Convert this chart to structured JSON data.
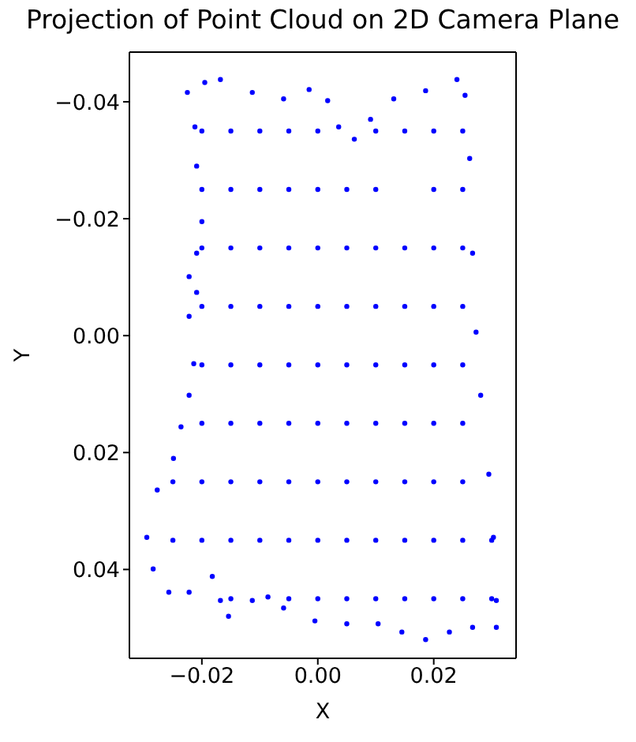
{
  "chart_data": {
    "type": "scatter",
    "title": "Projection of Point Cloud on 2D Camera Plane",
    "xlabel": "X",
    "ylabel": "Y",
    "x": [
      -0.0225,
      -0.0195,
      -0.0168,
      -0.0113,
      -0.0059,
      -0.0015,
      0.0017,
      0.0036,
      0.0063,
      0.0091,
      0.0131,
      0.0186,
      0.024,
      0.0254,
      0.0262,
      0.0267,
      0.0273,
      0.0281,
      0.0295,
      0.0303,
      0.0308,
      0.0308,
      0.0267,
      0.0227,
      0.0186,
      0.0145,
      0.0104,
      0.005,
      -0.0005,
      -0.0059,
      -0.0086,
      -0.0113,
      -0.0154,
      -0.0168,
      -0.0182,
      -0.0222,
      -0.0257,
      -0.0284,
      -0.0295,
      -0.0277,
      -0.0249,
      -0.0236,
      -0.0222,
      -0.0214,
      -0.0222,
      -0.0209,
      -0.0222,
      -0.0209,
      -0.02,
      -0.0209,
      -0.0212,
      -0.02,
      -0.015,
      -0.01,
      -0.005,
      0,
      0.01,
      0.015,
      0.02,
      0.025,
      -0.02,
      -0.015,
      -0.01,
      -0.005,
      0,
      0.005,
      0.01,
      0.02,
      0.025,
      -0.02,
      -0.015,
      -0.01,
      -0.005,
      0,
      0.005,
      0.01,
      0.015,
      0.02,
      0.025,
      -0.02,
      -0.015,
      -0.01,
      -0.005,
      0,
      0.005,
      0.01,
      0.015,
      0.02,
      0.025,
      -0.02,
      -0.015,
      -0.01,
      -0.005,
      0,
      0.005,
      0.01,
      0.015,
      0.02,
      0.025,
      -0.02,
      -0.015,
      -0.01,
      -0.005,
      0,
      0.005,
      0.01,
      0.015,
      0.02,
      0.025,
      -0.025,
      -0.02,
      -0.015,
      -0.01,
      -0.005,
      0,
      0.005,
      0.01,
      0.015,
      0.02,
      0.025,
      -0.025,
      -0.02,
      -0.015,
      -0.01,
      -0.005,
      0,
      0.005,
      0.01,
      0.015,
      0.02,
      0.025,
      0.03,
      -0.015,
      -0.005,
      0,
      0.005,
      0.01,
      0.015,
      0.02,
      0.025,
      0.03
    ],
    "values": [
      -0.0416,
      -0.0433,
      -0.0438,
      -0.0416,
      -0.0405,
      -0.0421,
      -0.0402,
      -0.0357,
      -0.0336,
      -0.037,
      -0.0405,
      -0.0419,
      -0.0438,
      -0.0411,
      -0.0303,
      -0.0141,
      -0.0006,
      0.0102,
      0.0237,
      0.0345,
      0.0453,
      0.0499,
      0.0499,
      0.0507,
      0.052,
      0.0507,
      0.0493,
      0.0493,
      0.0488,
      0.0466,
      0.0447,
      0.0453,
      0.048,
      0.0453,
      0.0412,
      0.0439,
      0.0439,
      0.0399,
      0.0345,
      0.0264,
      0.021,
      0.0156,
      0.0102,
      0.0048,
      -0.0033,
      -0.0074,
      -0.0101,
      -0.0141,
      -0.0195,
      -0.029,
      -0.0357,
      -0.035,
      -0.035,
      -0.035,
      -0.035,
      -0.035,
      -0.035,
      -0.035,
      -0.035,
      -0.035,
      -0.025,
      -0.025,
      -0.025,
      -0.025,
      -0.025,
      -0.025,
      -0.025,
      -0.025,
      -0.025,
      -0.015,
      -0.015,
      -0.015,
      -0.015,
      -0.015,
      -0.015,
      -0.015,
      -0.015,
      -0.015,
      -0.015,
      -0.005,
      -0.005,
      -0.005,
      -0.005,
      -0.005,
      -0.005,
      -0.005,
      -0.005,
      -0.005,
      -0.005,
      0.005,
      0.005,
      0.005,
      0.005,
      0.005,
      0.005,
      0.005,
      0.005,
      0.005,
      0.005,
      0.015,
      0.015,
      0.015,
      0.015,
      0.015,
      0.015,
      0.015,
      0.015,
      0.015,
      0.015,
      0.025,
      0.025,
      0.025,
      0.025,
      0.025,
      0.025,
      0.025,
      0.025,
      0.025,
      0.025,
      0.025,
      0.035,
      0.035,
      0.035,
      0.035,
      0.035,
      0.035,
      0.035,
      0.035,
      0.035,
      0.035,
      0.035,
      0.035,
      0.045,
      0.045,
      0.045,
      0.045,
      0.045,
      0.045,
      0.045,
      0.045,
      0.045
    ],
    "color": "#0000ff",
    "marker": "circle",
    "xlim": [
      -0.0325,
      0.0342
    ],
    "ylim": [
      0.0552,
      -0.0485
    ],
    "xticks": [
      {
        "value": -0.02,
        "label": "−0.02"
      },
      {
        "value": 0,
        "label": "0.00"
      },
      {
        "value": 0.02,
        "label": "0.02"
      }
    ],
    "yticks": [
      {
        "value": -0.04,
        "label": "−0.04"
      },
      {
        "value": -0.02,
        "label": "−0.02"
      },
      {
        "value": 0,
        "label": "0.00"
      },
      {
        "value": 0.02,
        "label": "0.02"
      },
      {
        "value": 0.04,
        "label": "0.04"
      }
    ]
  }
}
